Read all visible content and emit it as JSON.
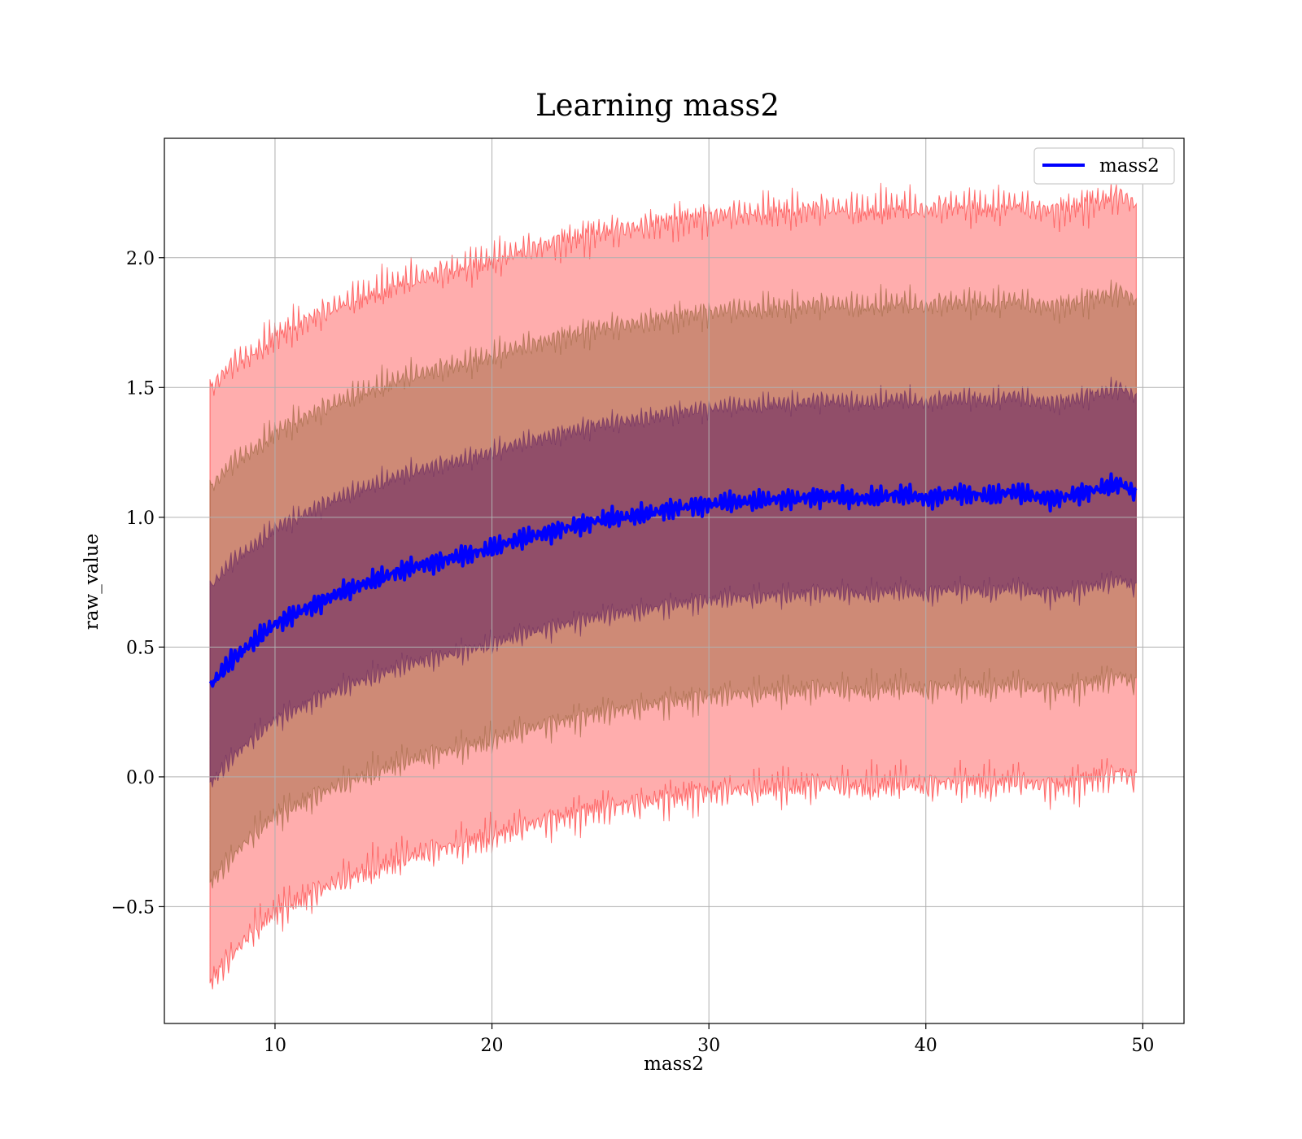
{
  "chart_data": {
    "type": "line",
    "title": "Learning mass2",
    "xlabel": "mass2",
    "ylabel": "raw_value",
    "xlim": [
      4.9,
      51.9
    ],
    "ylim": [
      -0.95,
      2.46
    ],
    "xticks": [
      10,
      20,
      30,
      40,
      50
    ],
    "xtick_labels": [
      "10",
      "20",
      "30",
      "40",
      "50"
    ],
    "yticks": [
      -0.5,
      0.0,
      0.5,
      1.0,
      1.5,
      2.0
    ],
    "ytick_labels": [
      "−0.5",
      "0.0",
      "0.5",
      "1.0",
      "1.5",
      "2.0"
    ],
    "grid": true,
    "legend": {
      "placement": "top-right",
      "entries": [
        "mass2"
      ]
    },
    "colors": {
      "mean_line": "#0000ff",
      "band_3sigma": "#ff0000",
      "band_2sigma": "#8b5a2b",
      "band_1sigma": "#5e1e5e",
      "grid": "#b0b0b0"
    },
    "series": [
      {
        "name": "mass2",
        "x": [
          7.0,
          7.5,
          8,
          9,
          10,
          11,
          12,
          13,
          14,
          15,
          16,
          17,
          18,
          19,
          20,
          21,
          22,
          23,
          24,
          25,
          26,
          27,
          28,
          29,
          30,
          31,
          32,
          33,
          34,
          35,
          36,
          37,
          38,
          39,
          40,
          41,
          42,
          43,
          44,
          45,
          46,
          47,
          48,
          49,
          49.7
        ],
        "mean": [
          0.35,
          0.4,
          0.45,
          0.52,
          0.59,
          0.63,
          0.67,
          0.71,
          0.74,
          0.77,
          0.8,
          0.82,
          0.84,
          0.86,
          0.88,
          0.91,
          0.93,
          0.95,
          0.97,
          0.99,
          1.0,
          1.01,
          1.03,
          1.04,
          1.05,
          1.06,
          1.06,
          1.07,
          1.07,
          1.08,
          1.08,
          1.07,
          1.08,
          1.09,
          1.07,
          1.09,
          1.09,
          1.08,
          1.1,
          1.08,
          1.07,
          1.09,
          1.11,
          1.13,
          1.09
        ],
        "std": [
          0.38,
          0.38,
          0.38,
          0.37,
          0.37,
          0.37,
          0.37,
          0.37,
          0.37,
          0.37,
          0.37,
          0.37,
          0.37,
          0.37,
          0.37,
          0.37,
          0.37,
          0.37,
          0.37,
          0.37,
          0.37,
          0.37,
          0.37,
          0.37,
          0.37,
          0.37,
          0.37,
          0.37,
          0.37,
          0.37,
          0.37,
          0.37,
          0.37,
          0.37,
          0.37,
          0.37,
          0.37,
          0.37,
          0.37,
          0.37,
          0.37,
          0.37,
          0.37,
          0.37,
          0.37
        ]
      }
    ]
  }
}
